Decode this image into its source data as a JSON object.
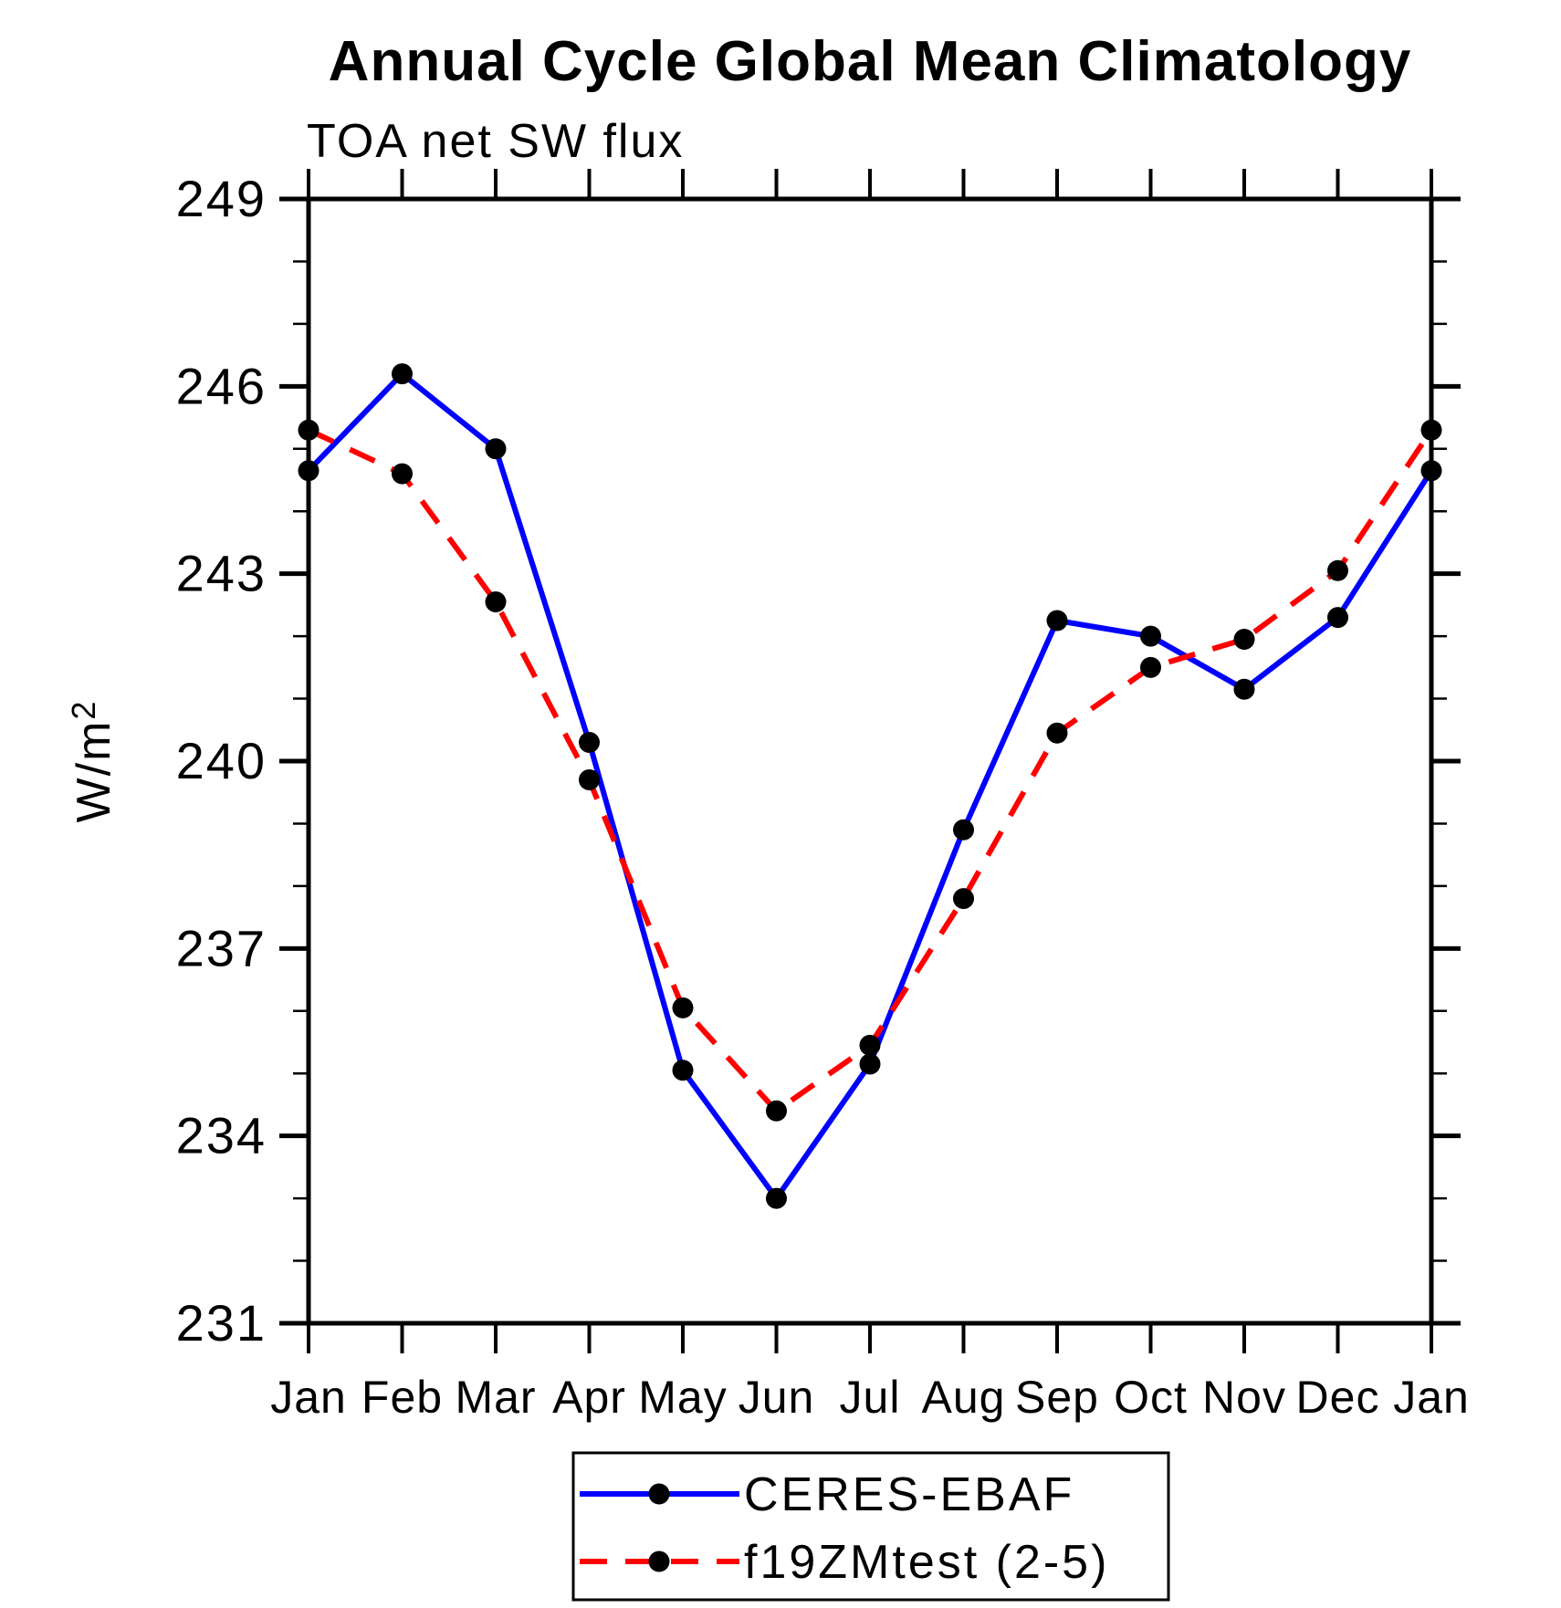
{
  "page": {
    "background": "#ffffff"
  },
  "chart_data": {
    "type": "line",
    "title": "Annual Cycle Global Mean Climatology",
    "subtitle": "TOA net SW flux",
    "ylabel": "W/m²",
    "ylabel_parts": {
      "base": "W/m",
      "sup": "2"
    },
    "xlabel": "",
    "categories": [
      "Jan",
      "Feb",
      "Mar",
      "Apr",
      "May",
      "Jun",
      "Jul",
      "Aug",
      "Sep",
      "Oct",
      "Nov",
      "Dec",
      "Jan"
    ],
    "ylim": [
      231,
      249
    ],
    "yticks_major": [
      231,
      234,
      237,
      240,
      243,
      246,
      249
    ],
    "ytick_minor_step": 1,
    "grid": false,
    "legend_position": "bottom-center-box",
    "axis_color": "#000000",
    "series": [
      {
        "name": "CERES-EBAF",
        "color": "#0000ff",
        "line_style": "solid",
        "marker": "filled-circle",
        "marker_color": "#000000",
        "values": [
          244.65,
          246.2,
          245.0,
          240.3,
          235.05,
          233.0,
          235.15,
          238.9,
          242.25,
          242.0,
          241.15,
          242.3,
          244.65
        ]
      },
      {
        "name": "f19ZMtest (2-5)",
        "color": "#ff0000",
        "line_style": "dashed",
        "marker": "filled-circle",
        "marker_color": "#000000",
        "values": [
          245.3,
          244.6,
          242.55,
          239.7,
          236.05,
          234.4,
          235.45,
          237.8,
          240.45,
          241.5,
          241.95,
          243.05,
          245.3
        ]
      }
    ]
  }
}
